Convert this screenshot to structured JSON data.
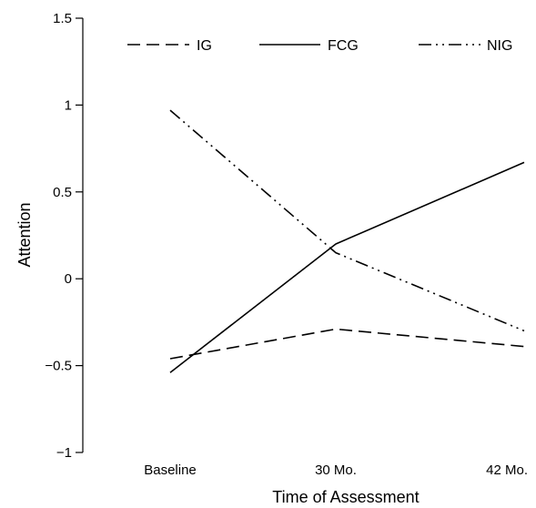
{
  "chart_data": {
    "type": "line",
    "categories": [
      "Baseline",
      "30 Mo.",
      "42 Mo."
    ],
    "series": [
      {
        "name": "IG",
        "values": [
          -0.46,
          -0.29,
          -0.39
        ],
        "dash": "dashed"
      },
      {
        "name": "FCG",
        "values": [
          -0.54,
          0.2,
          0.67
        ],
        "dash": "solid"
      },
      {
        "name": "NIG",
        "values": [
          0.97,
          0.15,
          -0.3
        ],
        "dash": "dashdotdot"
      }
    ],
    "xlabel": "Time of Assessment",
    "ylabel": "Attention",
    "ylim": [
      -1,
      1.5
    ],
    "yticks": [
      -1,
      -0.5,
      0,
      0.5,
      1,
      1.5
    ],
    "ytick_labels": [
      "−1",
      "−0.5",
      "0",
      "0.5",
      "1",
      "1.5"
    ],
    "grid": false,
    "legend_position": "top",
    "line_color": "#000000"
  }
}
